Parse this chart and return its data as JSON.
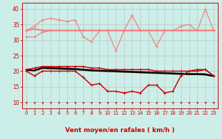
{
  "bg_color": "#cceee8",
  "grid_color": "#bbbbbb",
  "xlabel": "Vent moyen/en rafales ( km/h )",
  "xlabel_color": "#cc0000",
  "tick_color": "#cc0000",
  "ylim": [
    8,
    42
  ],
  "xlim": [
    -0.5,
    23.5
  ],
  "yticks": [
    10,
    15,
    20,
    25,
    30,
    35,
    40
  ],
  "xticks": [
    0,
    1,
    2,
    3,
    4,
    5,
    6,
    7,
    8,
    9,
    10,
    11,
    12,
    13,
    14,
    15,
    16,
    17,
    18,
    19,
    20,
    21,
    22,
    23
  ],
  "line_salmon_flat1": [
    33.0,
    33.5,
    33.0,
    33.0,
    33.0,
    33.0,
    33.0,
    33.0,
    33.0,
    33.0,
    33.0,
    33.0,
    33.0,
    33.0,
    33.0,
    33.0,
    33.0,
    33.0,
    33.0,
    33.0,
    33.0,
    33.0,
    33.0,
    33.0
  ],
  "line_salmon_flat2": [
    33.2,
    33.7,
    33.2,
    33.2,
    33.2,
    33.2,
    33.2,
    33.2,
    33.2,
    33.2,
    33.2,
    33.2,
    33.2,
    33.2,
    33.2,
    33.2,
    33.2,
    33.2,
    33.2,
    33.2,
    33.2,
    33.2,
    33.2,
    33.2
  ],
  "line_salmon_flat3": [
    31.0,
    31.0,
    32.5,
    33.0,
    33.0,
    33.0,
    33.0,
    33.0,
    33.0,
    33.0,
    33.0,
    33.0,
    33.0,
    33.0,
    33.0,
    33.0,
    33.0,
    33.0,
    33.0,
    33.0,
    33.0,
    33.0,
    33.0,
    33.0
  ],
  "line_salmon_volatile": [
    33.0,
    34.5,
    36.5,
    37.0,
    36.5,
    36.0,
    36.5,
    31.0,
    29.5,
    33.0,
    33.0,
    26.5,
    33.0,
    38.0,
    33.0,
    33.0,
    28.0,
    33.0,
    33.0,
    34.5,
    35.0,
    33.0,
    40.0,
    33.0
  ],
  "line_red_mean": [
    20.5,
    21.0,
    21.5,
    21.5,
    21.5,
    21.5,
    21.5,
    21.5,
    21.0,
    21.0,
    20.5,
    20.5,
    20.5,
    20.5,
    20.5,
    20.5,
    20.0,
    20.0,
    20.0,
    20.0,
    20.0,
    20.5,
    20.5,
    18.5
  ],
  "line_red_volatile": [
    20.0,
    18.5,
    20.0,
    20.0,
    20.0,
    20.0,
    20.0,
    18.0,
    15.5,
    16.0,
    13.5,
    13.5,
    13.0,
    13.5,
    13.0,
    15.5,
    15.5,
    13.0,
    13.5,
    18.5,
    20.0,
    20.0,
    20.5,
    18.5
  ],
  "line_black_1": [
    20.5,
    20.3,
    21.2,
    21.1,
    21.0,
    20.9,
    20.8,
    20.6,
    20.4,
    20.3,
    20.2,
    20.1,
    20.0,
    19.9,
    19.8,
    19.7,
    19.6,
    19.5,
    19.4,
    19.3,
    19.2,
    19.2,
    19.1,
    18.5
  ],
  "line_black_2": [
    20.3,
    20.1,
    20.9,
    20.8,
    20.7,
    20.6,
    20.5,
    20.3,
    20.1,
    20.0,
    19.9,
    19.8,
    19.7,
    19.6,
    19.5,
    19.4,
    19.3,
    19.2,
    19.1,
    19.0,
    18.9,
    18.9,
    18.8,
    18.3
  ],
  "salmon_color": "#f08080",
  "red_color": "#cc0000",
  "black_color": "#000000",
  "lw_salmon": 0.9,
  "lw_red": 1.1,
  "lw_black": 1.1,
  "marker_size": 2.5
}
